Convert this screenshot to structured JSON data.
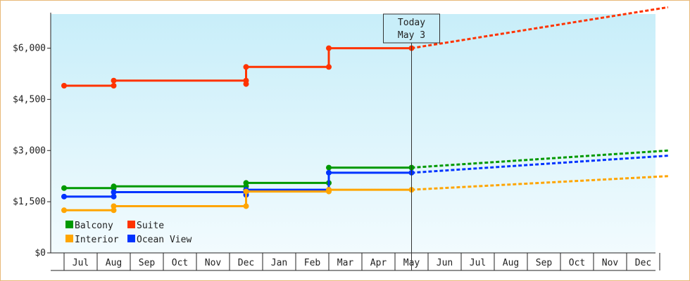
{
  "chart_data": {
    "type": "line",
    "subtype": "step-with-projection",
    "ylim": [
      0,
      7000
    ],
    "y_ticks": [
      0,
      1500,
      3000,
      4500,
      6000
    ],
    "y_tick_labels": [
      "$0",
      "$1,500",
      "$3,000",
      "$4,500",
      "$6,000"
    ],
    "x_months": [
      "Jul",
      "Aug",
      "Sep",
      "Oct",
      "Nov",
      "Dec",
      "Jan",
      "Feb",
      "Mar",
      "Apr",
      "May",
      "Jun",
      "Jul",
      "Aug",
      "Sep",
      "Oct",
      "Nov",
      "Dec"
    ],
    "today": {
      "line1": "Today",
      "line2": "May 3",
      "x": 10.0
    },
    "grid": false,
    "legend_position": "bottom-left",
    "series": [
      {
        "name": "Suite",
        "color": "#ff3300",
        "points": [
          [
            -0.5,
            4900
          ],
          [
            1.0,
            4900
          ],
          [
            1.0,
            5050
          ],
          [
            5.0,
            5050
          ],
          [
            5.0,
            4950
          ],
          [
            5.0,
            5450
          ],
          [
            7.5,
            5450
          ],
          [
            7.5,
            6000
          ],
          [
            10.0,
            6000
          ]
        ],
        "markers": [
          [
            -0.5,
            4900
          ],
          [
            1.0,
            4900
          ],
          [
            1.0,
            5050
          ],
          [
            5.0,
            5050
          ],
          [
            5.0,
            4950
          ],
          [
            5.0,
            5450
          ],
          [
            7.5,
            5450
          ],
          [
            7.5,
            6000
          ],
          [
            10.0,
            6000
          ]
        ],
        "projection": [
          [
            10.0,
            6000
          ],
          [
            17.75,
            7200
          ]
        ]
      },
      {
        "name": "Balcony",
        "color": "#009900",
        "points": [
          [
            -0.5,
            1900
          ],
          [
            1.0,
            1900
          ],
          [
            1.0,
            1950
          ],
          [
            5.0,
            1950
          ],
          [
            5.0,
            1850
          ],
          [
            5.0,
            2050
          ],
          [
            7.5,
            2050
          ],
          [
            7.5,
            2500
          ],
          [
            10.0,
            2500
          ]
        ],
        "markers": [
          [
            -0.5,
            1900
          ],
          [
            1.0,
            1900
          ],
          [
            1.0,
            1950
          ],
          [
            5.0,
            1950
          ],
          [
            5.0,
            1850
          ],
          [
            5.0,
            2050
          ],
          [
            7.5,
            2050
          ],
          [
            7.5,
            2500
          ],
          [
            10.0,
            2500
          ]
        ],
        "projection": [
          [
            10.0,
            2500
          ],
          [
            17.75,
            3000
          ]
        ]
      },
      {
        "name": "Ocean View",
        "color": "#0033ff",
        "points": [
          [
            -0.5,
            1650
          ],
          [
            1.0,
            1650
          ],
          [
            1.0,
            1780
          ],
          [
            5.0,
            1780
          ],
          [
            5.0,
            1700
          ],
          [
            5.0,
            1850
          ],
          [
            7.5,
            1850
          ],
          [
            7.5,
            2350
          ],
          [
            10.0,
            2350
          ]
        ],
        "markers": [
          [
            -0.5,
            1650
          ],
          [
            1.0,
            1650
          ],
          [
            1.0,
            1780
          ],
          [
            5.0,
            1780
          ],
          [
            5.0,
            1700
          ],
          [
            5.0,
            1850
          ],
          [
            7.5,
            1850
          ],
          [
            7.5,
            2350
          ],
          [
            10.0,
            2350
          ]
        ],
        "projection": [
          [
            10.0,
            2350
          ],
          [
            17.75,
            2850
          ]
        ]
      },
      {
        "name": "Interior",
        "color": "#ffa500",
        "points": [
          [
            -0.5,
            1250
          ],
          [
            1.0,
            1250
          ],
          [
            1.0,
            1370
          ],
          [
            5.0,
            1370
          ],
          [
            5.0,
            1800
          ],
          [
            7.5,
            1800
          ],
          [
            7.5,
            1850
          ],
          [
            10.0,
            1850
          ]
        ],
        "markers": [
          [
            -0.5,
            1250
          ],
          [
            1.0,
            1250
          ],
          [
            1.0,
            1370
          ],
          [
            5.0,
            1370
          ],
          [
            5.0,
            1800
          ],
          [
            7.5,
            1800
          ],
          [
            7.5,
            1850
          ],
          [
            10.0,
            1850
          ]
        ],
        "projection": [
          [
            10.0,
            1850
          ],
          [
            17.75,
            2250
          ]
        ]
      }
    ],
    "legend": [
      {
        "name": "Balcony",
        "color": "#009900"
      },
      {
        "name": "Suite",
        "color": "#ff3300"
      },
      {
        "name": "Interior",
        "color": "#ffa500"
      },
      {
        "name": "Ocean View",
        "color": "#0033ff"
      }
    ]
  }
}
